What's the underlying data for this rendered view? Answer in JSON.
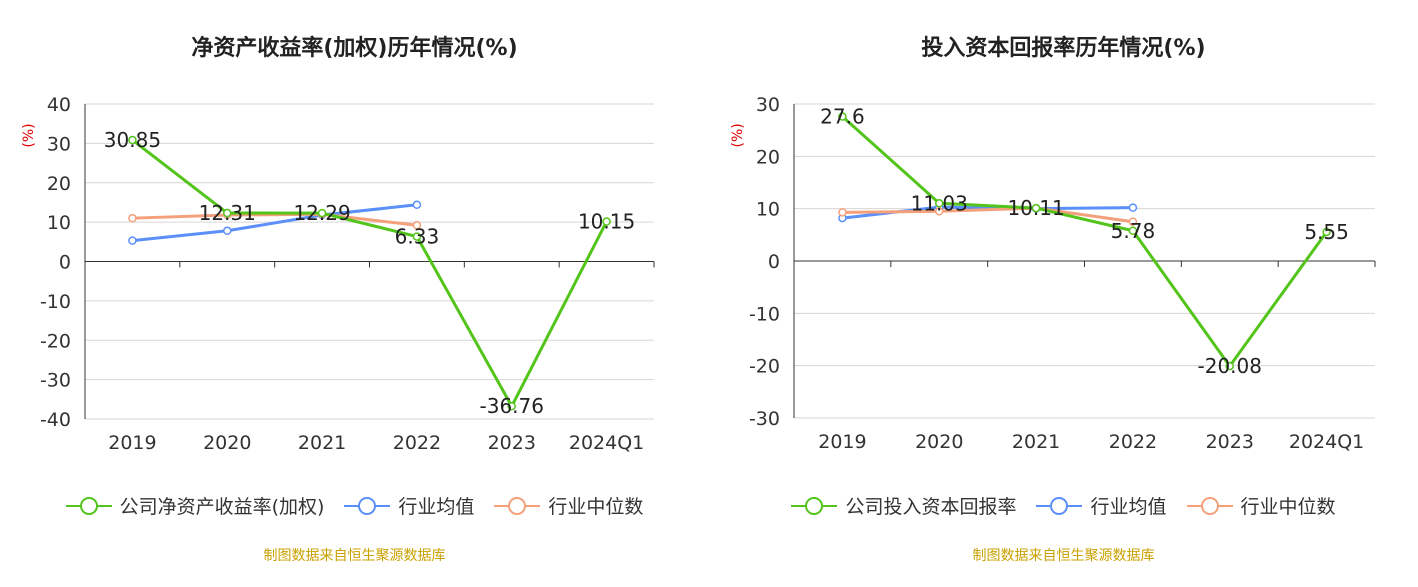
{
  "chart_data": [
    {
      "type": "line",
      "title": "净资产收益率(加权)历年情况(%)",
      "ylabel": "(%)",
      "xlabel": "",
      "categories": [
        "2019",
        "2020",
        "2021",
        "2022",
        "2023",
        "2024Q1"
      ],
      "ylim": [
        -40,
        40
      ],
      "yticks": [
        40,
        30,
        20,
        10,
        0,
        -10,
        -20,
        -30,
        -40
      ],
      "grid": true,
      "legend_position": "bottom",
      "series": [
        {
          "name": "公司净资产收益率(加权)",
          "color": "#52c41a",
          "values": [
            30.85,
            12.31,
            12.29,
            6.33,
            -36.76,
            10.15
          ],
          "labels": [
            "30.85",
            "12.31",
            "12.29",
            "6.33",
            "-36.76",
            "10.15"
          ]
        },
        {
          "name": "行业均值",
          "color": "#5b8ff9",
          "values": [
            5.3,
            7.8,
            11.8,
            14.4,
            null,
            null
          ]
        },
        {
          "name": "行业中位数",
          "color": "#f4a07a",
          "values": [
            11.0,
            11.8,
            12.0,
            9.2,
            null,
            null
          ]
        }
      ],
      "source": "制图数据来自恒生聚源数据库"
    },
    {
      "type": "line",
      "title": "投入资本回报率历年情况(%)",
      "ylabel": "(%)",
      "xlabel": "",
      "categories": [
        "2019",
        "2020",
        "2021",
        "2022",
        "2023",
        "2024Q1"
      ],
      "ylim": [
        -30,
        30
      ],
      "yticks": [
        30,
        20,
        10,
        0,
        -10,
        -20,
        -30
      ],
      "grid": true,
      "legend_position": "bottom",
      "series": [
        {
          "name": "公司投入资本回报率",
          "color": "#52c41a",
          "values": [
            27.6,
            11.03,
            10.11,
            5.78,
            -20.08,
            5.55
          ],
          "labels": [
            "27.6",
            "11.03",
            "10.11",
            "5.78",
            "-20.08",
            "5.55"
          ]
        },
        {
          "name": "行业均值",
          "color": "#5b8ff9",
          "values": [
            8.2,
            10.3,
            10.0,
            10.2,
            null,
            null
          ]
        },
        {
          "name": "行业中位数",
          "color": "#f4a07a",
          "values": [
            9.3,
            9.5,
            10.1,
            7.5,
            null,
            null
          ]
        }
      ],
      "source": "制图数据来自恒生聚源数据库"
    }
  ]
}
